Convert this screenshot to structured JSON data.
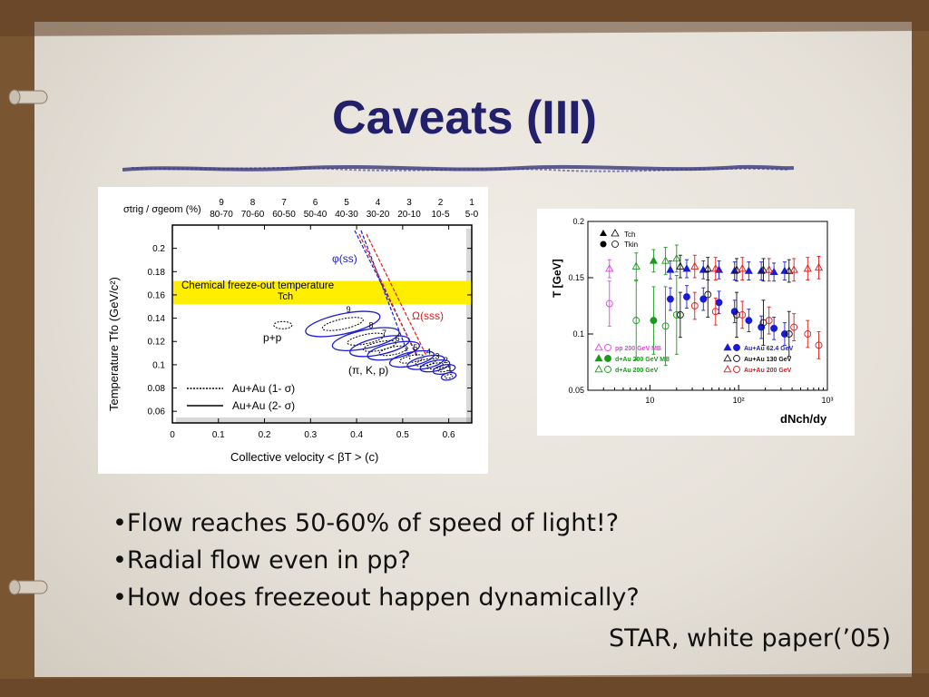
{
  "slide": {
    "title": "Caveats (III)",
    "bullets": [
      "•Flow reaches 50-60% of speed of light!?",
      "•Radial flow even in pp?",
      "•How does freezeout happen dynamically?"
    ],
    "citation": "STAR, white paper(’05)"
  },
  "chart_data": [
    {
      "type": "scatter",
      "xlabel": "Collective velocity < βT > (c)",
      "ylabel": "Temperature Tfo (GeV/c²)",
      "xlim": [
        0,
        0.65
      ],
      "ylim": [
        0.05,
        0.22
      ],
      "x_ticks": [
        "0",
        "0.1",
        "0.2",
        "0.3",
        "0.4",
        "0.5",
        "0.6"
      ],
      "y_ticks": [
        "0.06",
        "0.08",
        "0.1",
        "0.12",
        "0.14",
        "0.16",
        "0.18",
        "0.2"
      ],
      "top_axis_label": "σtrig / σgeom (%)",
      "centrality_bins": [
        "9",
        "8",
        "7",
        "6",
        "5",
        "4",
        "3",
        "2",
        "1"
      ],
      "centrality_ranges": [
        "80-70",
        "70-60",
        "60-50",
        "50-40",
        "40-30",
        "30-20",
        "20-10",
        "10-5",
        "5-0"
      ],
      "band": {
        "label": "Chemical freeze-out temperature",
        "sublabel": "Tch",
        "ymin": 0.152,
        "ymax": 0.172,
        "color": "#ffee00"
      },
      "pp_label": "p+p",
      "particles_label": "(π, K, p)",
      "phi_label": "φ(ss)",
      "omega_label": "Ω(sss)",
      "legend": [
        "Au+Au (1- σ)",
        "Au+Au (2- σ)"
      ],
      "legend_position": "bottom-left",
      "series": [
        {
          "name": "Au+Au (1- σ)",
          "points": [
            {
              "label": "9",
              "x": 0.37,
              "y": 0.135
            },
            {
              "label": "8",
              "x": 0.42,
              "y": 0.122
            },
            {
              "label": "7",
              "x": 0.45,
              "y": 0.116
            },
            {
              "label": "6",
              "x": 0.48,
              "y": 0.112
            },
            {
              "label": "5",
              "x": 0.52,
              "y": 0.105
            },
            {
              "label": "4",
              "x": 0.55,
              "y": 0.102
            },
            {
              "label": "3",
              "x": 0.57,
              "y": 0.099
            },
            {
              "label": "2",
              "x": 0.59,
              "y": 0.096
            },
            {
              "label": "1",
              "x": 0.6,
              "y": 0.09
            }
          ]
        },
        {
          "name": "p+p",
          "points": [
            {
              "x": 0.24,
              "y": 0.134
            }
          ]
        }
      ],
      "colors": {
        "contour": "#1b1bd6",
        "phi": "#1b1bd6",
        "omega": "#e01919"
      }
    },
    {
      "type": "scatter",
      "xlabel": "dNch/dy",
      "ylabel": "T [GeV]",
      "x_scale": "log",
      "xlim": [
        2,
        1000
      ],
      "ylim": [
        0.05,
        0.2
      ],
      "x_ticks": [
        "10",
        "10²",
        "10³"
      ],
      "y_ticks": [
        "0.05",
        "0.1",
        "0.15",
        "0.2"
      ],
      "legend_top": [
        "Tch",
        "Tkin"
      ],
      "legend": [
        {
          "label": "pp 200 GeV MB",
          "color": "#e640e6"
        },
        {
          "label": "d+Au 200 GeV MB",
          "color": "#1a9a1a"
        },
        {
          "label": "d+Au 200 GeV",
          "color": "#1a9a1a"
        },
        {
          "label": "Au+Au 62.4 GeV",
          "color": "#1b1bd6"
        },
        {
          "label": "Au+Au 130 GeV",
          "color": "#111111"
        },
        {
          "label": "Au+Au 200 GeV",
          "color": "#e01919"
        }
      ],
      "series": [
        {
          "name": "pp 200 GeV MB",
          "color": "#e640e6",
          "marker": "triangle-open",
          "x": [
            3.5
          ],
          "y": [
            0.158
          ],
          "err": [
            0.008
          ]
        },
        {
          "name": "pp 200 GeV MB",
          "color": "#e640e6",
          "marker": "circle-open",
          "x": [
            3.5
          ],
          "y": [
            0.127
          ],
          "err": [
            0.02
          ]
        },
        {
          "name": "d+Au 200 GeV MB",
          "color": "#1a9a1a",
          "marker": "triangle-filled",
          "x": [
            11
          ],
          "y": [
            0.165
          ],
          "err": [
            0.01
          ]
        },
        {
          "name": "d+Au 200 GeV MB",
          "color": "#1a9a1a",
          "marker": "circle-filled",
          "x": [
            11
          ],
          "y": [
            0.112
          ],
          "err": [
            0.03
          ]
        },
        {
          "name": "d+Au 200 GeV",
          "color": "#1a9a1a",
          "marker": "triangle-open",
          "x": [
            7,
            15,
            20
          ],
          "y": [
            0.16,
            0.165,
            0.167
          ],
          "err": [
            0.012,
            0.012,
            0.012
          ]
        },
        {
          "name": "d+Au 200 GeV",
          "color": "#1a9a1a",
          "marker": "circle-open",
          "x": [
            7,
            15,
            20
          ],
          "y": [
            0.112,
            0.107,
            0.117
          ],
          "err": [
            0.035,
            0.035,
            0.035
          ]
        },
        {
          "name": "Au+Au 62.4 GeV",
          "color": "#1b1bd6",
          "marker": "triangle-filled",
          "x": [
            17,
            26,
            40,
            60,
            90,
            130,
            180,
            250,
            330
          ],
          "y": [
            0.157,
            0.158,
            0.157,
            0.157,
            0.156,
            0.156,
            0.156,
            0.155,
            0.156
          ],
          "err": [
            0.008,
            0.008,
            0.008,
            0.008,
            0.008,
            0.008,
            0.008,
            0.008,
            0.008
          ]
        },
        {
          "name": "Au+Au 62.4 GeV",
          "color": "#1b1bd6",
          "marker": "circle-filled",
          "x": [
            17,
            26,
            40,
            60,
            90,
            130,
            180,
            250,
            330
          ],
          "y": [
            0.131,
            0.133,
            0.131,
            0.128,
            0.12,
            0.112,
            0.106,
            0.105,
            0.1
          ],
          "err": [
            0.01,
            0.01,
            0.01,
            0.01,
            0.01,
            0.01,
            0.01,
            0.01,
            0.01
          ]
        },
        {
          "name": "Au+Au 130 GeV",
          "color": "#111111",
          "marker": "triangle-open",
          "x": [
            22,
            45,
            95,
            190,
            370
          ],
          "y": [
            0.16,
            0.158,
            0.157,
            0.157,
            0.156
          ],
          "err": [
            0.01,
            0.01,
            0.01,
            0.01,
            0.01
          ]
        },
        {
          "name": "Au+Au 130 GeV",
          "color": "#111111",
          "marker": "circle-open",
          "x": [
            22,
            45,
            95,
            190,
            370
          ],
          "y": [
            0.117,
            0.135,
            0.117,
            0.11,
            0.1
          ],
          "err": [
            0.02,
            0.02,
            0.02,
            0.02,
            0.02
          ]
        },
        {
          "name": "Au+Au 200 GeV",
          "color": "#e01919",
          "marker": "triangle-open",
          "x": [
            32,
            55,
            110,
            220,
            420,
            600,
            800
          ],
          "y": [
            0.16,
            0.158,
            0.158,
            0.157,
            0.157,
            0.158,
            0.159
          ],
          "err": [
            0.01,
            0.01,
            0.01,
            0.01,
            0.01,
            0.01,
            0.01
          ]
        },
        {
          "name": "Au+Au 200 GeV",
          "color": "#e01919",
          "marker": "circle-open",
          "x": [
            32,
            55,
            110,
            220,
            420,
            600,
            800
          ],
          "y": [
            0.125,
            0.12,
            0.117,
            0.112,
            0.106,
            0.1,
            0.09
          ],
          "err": [
            0.012,
            0.012,
            0.012,
            0.012,
            0.012,
            0.012,
            0.012
          ]
        }
      ]
    }
  ]
}
